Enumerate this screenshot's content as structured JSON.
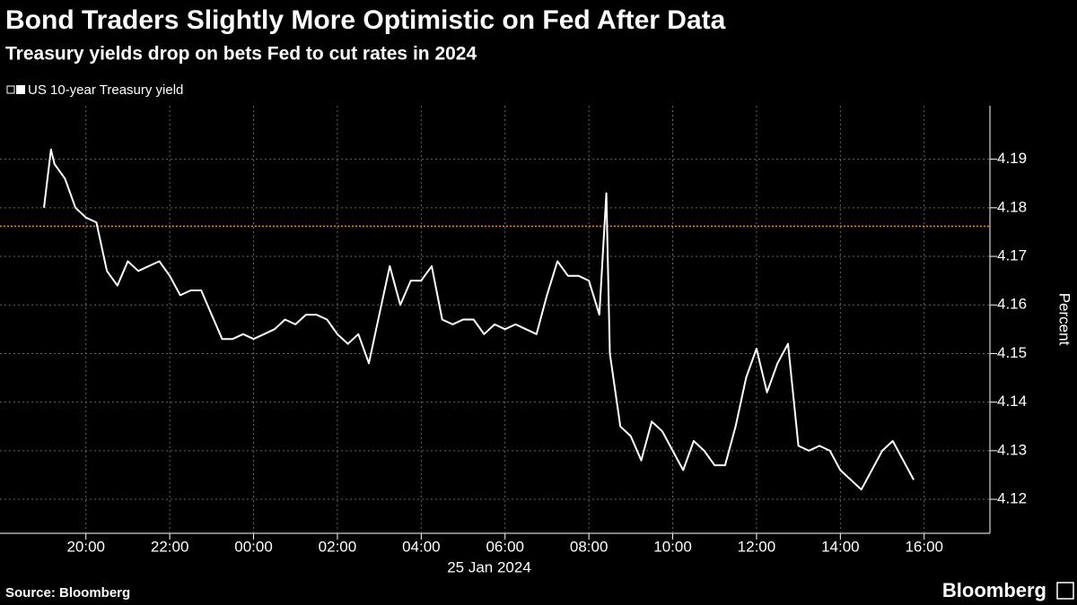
{
  "chart_data": {
    "type": "line",
    "title": "Bond Traders Slightly More Optimistic on Fed After Data",
    "subtitle": "Treasury yields drop on bets Fed to cut rates in 2024",
    "y_label": "Percent",
    "x_label": "25 Jan 2024",
    "source": "Source: Bloomberg",
    "brand": "Bloomberg",
    "grid": true,
    "x": [
      "19:00",
      "19:10",
      "19:15",
      "19:30",
      "19:45",
      "20:00",
      "20:15",
      "20:30",
      "20:45",
      "21:00",
      "21:15",
      "21:30",
      "21:45",
      "22:00",
      "22:15",
      "22:30",
      "22:45",
      "23:00",
      "23:15",
      "23:30",
      "23:45",
      "00:00",
      "00:15",
      "00:30",
      "00:45",
      "01:00",
      "01:15",
      "01:30",
      "01:45",
      "02:00",
      "02:15",
      "02:30",
      "02:45",
      "03:00",
      "03:15",
      "03:30",
      "03:45",
      "04:00",
      "04:15",
      "04:30",
      "04:45",
      "05:00",
      "05:15",
      "05:30",
      "05:45",
      "06:00",
      "06:15",
      "06:30",
      "06:45",
      "07:00",
      "07:15",
      "07:30",
      "07:45",
      "08:00",
      "08:15",
      "08:25",
      "08:30",
      "08:45",
      "09:00",
      "09:15",
      "09:30",
      "09:45",
      "10:00",
      "10:15",
      "10:30",
      "10:45",
      "11:00",
      "11:15",
      "11:30",
      "11:45",
      "12:00",
      "12:15",
      "12:30",
      "12:45",
      "13:00",
      "13:15",
      "13:30",
      "13:45",
      "14:00",
      "14:15",
      "14:30",
      "14:45",
      "15:00",
      "15:15",
      "15:30",
      "15:45"
    ],
    "series": [
      {
        "name": "US 10-year Treasury yield",
        "color": "#ffffff",
        "values": [
          4.18,
          4.192,
          4.189,
          4.186,
          4.18,
          4.178,
          4.177,
          4.167,
          4.164,
          4.169,
          4.167,
          4.168,
          4.169,
          4.166,
          4.162,
          4.163,
          4.163,
          4.158,
          4.153,
          4.153,
          4.154,
          4.153,
          4.154,
          4.155,
          4.157,
          4.156,
          4.158,
          4.158,
          4.157,
          4.154,
          4.152,
          4.154,
          4.148,
          4.158,
          4.168,
          4.16,
          4.165,
          4.165,
          4.168,
          4.157,
          4.156,
          4.157,
          4.157,
          4.154,
          4.156,
          4.155,
          4.156,
          4.155,
          4.154,
          4.162,
          4.169,
          4.166,
          4.166,
          4.165,
          4.158,
          4.183,
          4.15,
          4.135,
          4.133,
          4.128,
          4.136,
          4.134,
          4.13,
          4.126,
          4.132,
          4.13,
          4.127,
          4.127,
          4.135,
          4.145,
          4.151,
          4.142,
          4.148,
          4.152,
          4.131,
          4.13,
          4.131,
          4.13,
          4.126,
          4.124,
          4.122,
          4.126,
          4.13,
          4.132,
          4.128,
          4.124
        ]
      }
    ],
    "reference_line": {
      "value": 4.1762,
      "color": "#e08a2c"
    },
    "xlim": [
      "17:57",
      "17:11"
    ],
    "xticks": [
      "20:00",
      "22:00",
      "00:00",
      "02:00",
      "04:00",
      "06:00",
      "08:00",
      "10:00",
      "12:00",
      "14:00",
      "16:00"
    ],
    "ylim": [
      4.113,
      4.201
    ],
    "yticks": [
      4.12,
      4.13,
      4.14,
      4.15,
      4.16,
      4.17,
      4.18,
      4.19
    ]
  }
}
